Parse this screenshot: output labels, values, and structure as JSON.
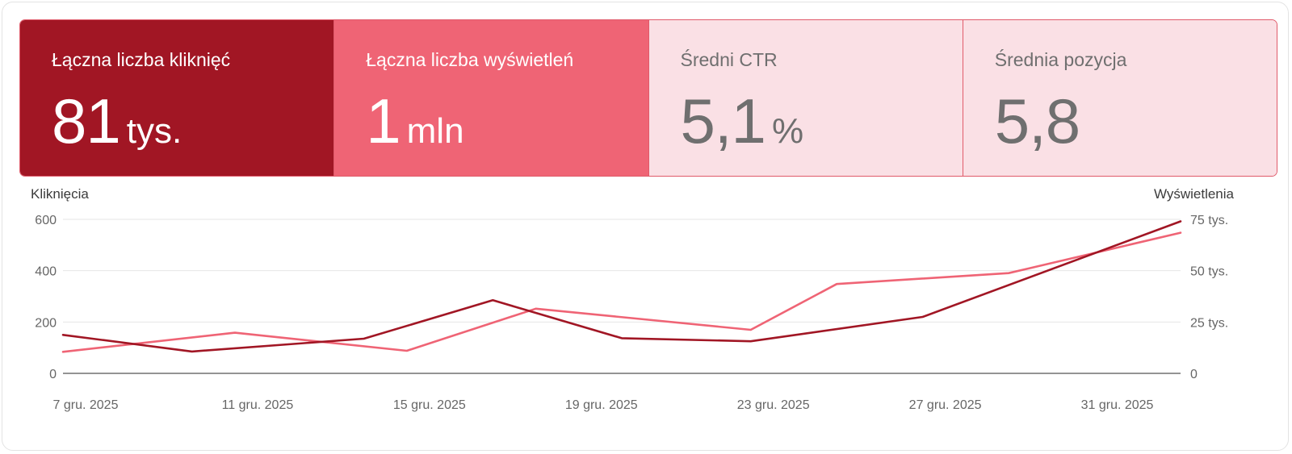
{
  "cards": [
    {
      "title": "Łączna liczba kliknięć",
      "value": "81",
      "unit": "tys."
    },
    {
      "title": "Łączna liczba wyświetleń",
      "value": "1",
      "unit": "mln"
    },
    {
      "title": "Średni CTR",
      "value": "5,1",
      "unit": "%"
    },
    {
      "title": "Średnia pozycja",
      "value": "5,8",
      "unit": ""
    }
  ],
  "colors": {
    "clicks": "#a11624",
    "impressions": "#ef6475"
  },
  "chart_data": {
    "type": "line",
    "y_left_label": "Kliknięcia",
    "y_right_label": "Wyświetlenia",
    "x_tick_labels": [
      "7 gru. 2025",
      "11 gru. 2025",
      "15 gru. 2025",
      "19 gru. 2025",
      "23 gru. 2025",
      "27 gru. 2025",
      "31 gru. 2025"
    ],
    "x": [
      "2025-12-07",
      "2025-12-10",
      "2025-12-14",
      "2025-12-18",
      "2025-12-21",
      "2025-12-24",
      "2025-12-27",
      "2025-12-29",
      "2025-12-31",
      "2026-01-02"
    ],
    "y_left": {
      "ticks": [
        0,
        200,
        400,
        600
      ],
      "tick_labels": [
        "0",
        "200",
        "400",
        "600"
      ],
      "ylim": [
        0,
        600
      ]
    },
    "y_right": {
      "ticks": [
        0,
        25000,
        50000,
        75000
      ],
      "tick_labels": [
        "0",
        "25 tys.",
        "50 tys.",
        "75 tys."
      ],
      "ylim": [
        0,
        75000
      ]
    },
    "series": [
      {
        "name": "Kliknięcia",
        "axis": "left",
        "color": "#a11624",
        "points": [
          [
            "2025-12-07",
            150
          ],
          [
            "2025-12-10",
            85
          ],
          [
            "2025-12-14",
            135
          ],
          [
            "2025-12-17",
            285
          ],
          [
            "2025-12-20",
            137
          ],
          [
            "2025-12-23",
            125
          ],
          [
            "2025-12-27",
            220
          ],
          [
            "2026-01-02",
            592
          ]
        ]
      },
      {
        "name": "Wyświetlenia",
        "axis": "right",
        "color": "#ef6475",
        "points": [
          [
            "2025-12-07",
            10500
          ],
          [
            "2025-12-11",
            19800
          ],
          [
            "2025-12-15",
            11000
          ],
          [
            "2025-12-18",
            31500
          ],
          [
            "2025-12-23",
            21200
          ],
          [
            "2025-12-25",
            43500
          ],
          [
            "2025-12-29",
            48800
          ],
          [
            "2026-01-02",
            68500
          ]
        ]
      }
    ],
    "grid": true
  }
}
